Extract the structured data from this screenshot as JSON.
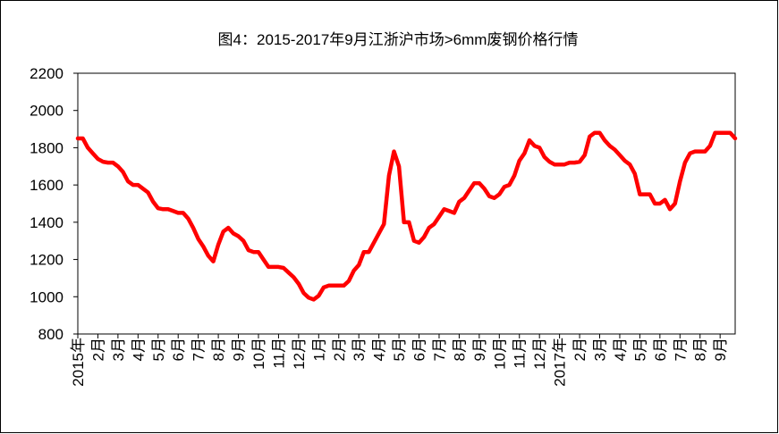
{
  "chart_data": {
    "type": "line",
    "title": "图4：2015-2017年9月江浙沪市场>6mm废钢价格行情",
    "categories": [
      "2015年",
      null,
      null,
      null,
      "2月",
      null,
      null,
      null,
      "3月",
      null,
      null,
      null,
      "4月",
      null,
      null,
      null,
      "5月",
      null,
      null,
      null,
      "6月",
      null,
      null,
      null,
      "7月",
      null,
      null,
      null,
      "8月",
      null,
      null,
      null,
      "9月",
      null,
      null,
      null,
      "10月",
      null,
      null,
      null,
      "11月",
      null,
      null,
      null,
      "12月",
      null,
      null,
      null,
      "1月",
      null,
      null,
      null,
      "2月",
      null,
      null,
      null,
      "3月",
      null,
      null,
      null,
      "4月",
      null,
      null,
      null,
      "5月",
      null,
      null,
      null,
      "6月",
      null,
      null,
      null,
      "7月",
      null,
      null,
      null,
      "8月",
      null,
      null,
      null,
      "9月",
      null,
      null,
      null,
      "10月",
      null,
      null,
      null,
      "11月",
      null,
      null,
      null,
      "12月",
      null,
      null,
      null,
      "2017年",
      null,
      null,
      null,
      "2月",
      null,
      null,
      null,
      "3月",
      null,
      null,
      null,
      "4月",
      null,
      null,
      null,
      "5月",
      null,
      null,
      null,
      "6月",
      null,
      null,
      null,
      "7月",
      null,
      null,
      null,
      "8月",
      null,
      null,
      null,
      "9月",
      null,
      null,
      null
    ],
    "values": [
      1850,
      1850,
      1800,
      1770,
      1740,
      1725,
      1720,
      1720,
      1700,
      1670,
      1620,
      1600,
      1600,
      1580,
      1560,
      1510,
      1475,
      1470,
      1470,
      1460,
      1450,
      1450,
      1420,
      1370,
      1310,
      1270,
      1220,
      1190,
      1280,
      1350,
      1370,
      1340,
      1325,
      1300,
      1250,
      1240,
      1240,
      1200,
      1160,
      1160,
      1160,
      1155,
      1130,
      1105,
      1070,
      1020,
      995,
      985,
      1005,
      1050,
      1060,
      1060,
      1060,
      1060,
      1085,
      1140,
      1170,
      1240,
      1240,
      1290,
      1340,
      1390,
      1650,
      1780,
      1700,
      1400,
      1400,
      1300,
      1290,
      1320,
      1370,
      1390,
      1430,
      1470,
      1460,
      1450,
      1510,
      1530,
      1570,
      1610,
      1610,
      1580,
      1540,
      1530,
      1550,
      1590,
      1600,
      1650,
      1730,
      1770,
      1840,
      1810,
      1800,
      1750,
      1725,
      1710,
      1710,
      1710,
      1720,
      1720,
      1725,
      1760,
      1860,
      1880,
      1880,
      1840,
      1810,
      1790,
      1760,
      1730,
      1710,
      1660,
      1550,
      1550,
      1550,
      1500,
      1500,
      1520,
      1470,
      1500,
      1620,
      1720,
      1770,
      1780,
      1780,
      1780,
      1810,
      1880,
      1880,
      1880,
      1880,
      1850
    ],
    "color": "#ff0000",
    "ylim": [
      800,
      2200
    ],
    "yticks": [
      800,
      1000,
      1200,
      1400,
      1600,
      1800,
      2000,
      2200
    ]
  }
}
